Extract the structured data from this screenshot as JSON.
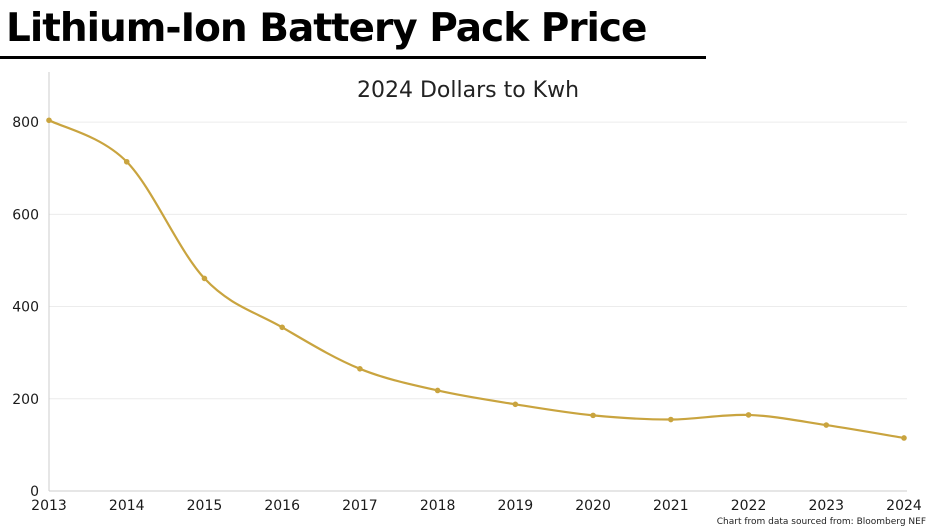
{
  "title": "Lithium-Ion Battery Pack Price",
  "source_note": "Chart from data sourced from: Bloomberg NEF",
  "colors": {
    "line": "#C9A43F",
    "grid": "#ececec",
    "axis": "#cccccc",
    "text": "#1a1a1a"
  },
  "chart_data": {
    "type": "line",
    "title": "2024 Dollars to Kwh",
    "xlabel": "",
    "ylabel": "",
    "ylim": [
      0,
      900
    ],
    "y_ticks": [
      0,
      200,
      400,
      600,
      800
    ],
    "grid": true,
    "x": [
      "2013",
      "2014",
      "2015",
      "2016",
      "2017",
      "2018",
      "2019",
      "2020",
      "2021",
      "2022",
      "2023",
      "2024"
    ],
    "series": [
      {
        "values": [
          804,
          714,
          461,
          355,
          265,
          218,
          188,
          164,
          155,
          165,
          143,
          115
        ]
      }
    ]
  }
}
